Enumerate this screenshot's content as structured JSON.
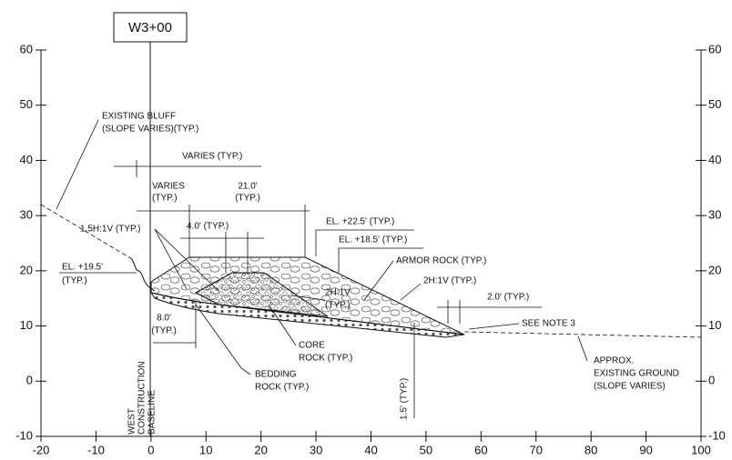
{
  "title": "W3+00",
  "axes": {
    "xticks": [
      -20,
      -10,
      0,
      10,
      20,
      30,
      40,
      50,
      60,
      70,
      80,
      90,
      100
    ],
    "yticks": [
      60,
      50,
      40,
      30,
      20,
      10,
      0,
      -10
    ]
  },
  "annotations": [
    {
      "lines": [
        "EXISTING BLUFF",
        "(SLOPE VARIES)(TYP.)"
      ]
    },
    {
      "lines": [
        "VARIES (TYP.)"
      ]
    },
    {
      "lines": [
        "VARIES",
        "(TYP.)"
      ]
    },
    {
      "lines": [
        "21.0'",
        "(TYP.)"
      ]
    },
    {
      "lines": [
        "1.5H:1V (TYP.)"
      ]
    },
    {
      "lines": [
        "4.0' (TYP.)"
      ]
    },
    {
      "lines": [
        "EL. +22.5' (TYP.)"
      ]
    },
    {
      "lines": [
        "EL. +18.5' (TYP.)"
      ]
    },
    {
      "lines": [
        "ARMOR ROCK (TYP.)"
      ]
    },
    {
      "lines": [
        "EL. +19.5'",
        "(TYP.)"
      ]
    },
    {
      "lines": [
        "2H:1V (TYP.)"
      ]
    },
    {
      "lines": [
        "2H:1V",
        "(TYP.)"
      ]
    },
    {
      "lines": [
        "2.0' (TYP.)"
      ]
    },
    {
      "lines": [
        "8.0'",
        "(TYP.)"
      ]
    },
    {
      "lines": [
        "SEE NOTE 3"
      ]
    },
    {
      "lines": [
        "CORE",
        "ROCK (TYP.)"
      ]
    },
    {
      "lines": [
        "APPROX.",
        "EXISTING GROUND",
        "(SLOPE VARIES)"
      ]
    },
    {
      "lines": [
        "BEDDING",
        "ROCK (TYP.)"
      ]
    },
    {
      "lines": [
        "1.5' (TYP.)"
      ]
    },
    {
      "lines": [
        "WEST",
        "CONSTRUCTION",
        "BASELINE"
      ]
    }
  ]
}
